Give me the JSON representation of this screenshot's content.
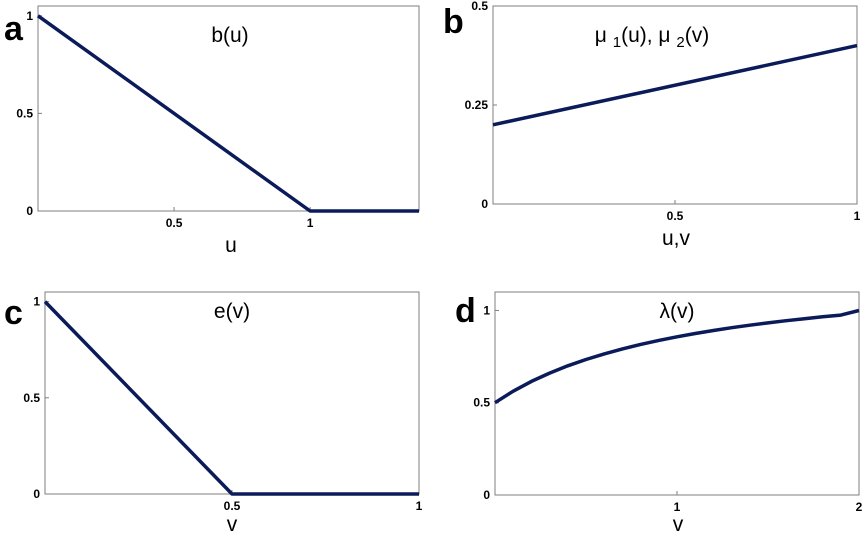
{
  "figure": {
    "line_color": "#0b1b5a",
    "frame_color": "#7f7f7f"
  },
  "chart_data": [
    {
      "panel_letter": "a",
      "type": "line",
      "title": "b(u)",
      "title_parts": [
        {
          "text": "b(u)",
          "sub": false
        }
      ],
      "xlabel": "u",
      "ylabel": "",
      "xlim": [
        0,
        1.4
      ],
      "ylim": [
        0,
        1.05
      ],
      "xticks": [
        {
          "value": 0.5,
          "label": "0.5"
        },
        {
          "value": 1,
          "label": "1"
        }
      ],
      "yticks": [
        {
          "value": 0,
          "label": "0"
        },
        {
          "value": 0.5,
          "label": "0.5"
        },
        {
          "value": 1,
          "label": "1"
        }
      ],
      "grid": false,
      "series": [
        {
          "x": [
            0,
            1,
            1.4
          ],
          "y": [
            1,
            0,
            0
          ]
        }
      ]
    },
    {
      "panel_letter": "b",
      "type": "line",
      "title": "μ 1(u), μ 2(v)",
      "title_parts": [
        {
          "text": "μ ",
          "sub": false
        },
        {
          "text": "1",
          "sub": true
        },
        {
          "text": "(u), μ ",
          "sub": false
        },
        {
          "text": "2",
          "sub": true
        },
        {
          "text": "(v)",
          "sub": false
        }
      ],
      "xlabel": "u,v",
      "ylabel": "",
      "xlim": [
        0,
        1
      ],
      "ylim": [
        0,
        0.5
      ],
      "xticks": [
        {
          "value": 0.5,
          "label": "0.5"
        },
        {
          "value": 1,
          "label": "1"
        }
      ],
      "yticks": [
        {
          "value": 0,
          "label": "0"
        },
        {
          "value": 0.25,
          "label": "0.25"
        },
        {
          "value": 0.5,
          "label": "0.5"
        }
      ],
      "grid": false,
      "series": [
        {
          "x": [
            0,
            1
          ],
          "y": [
            0.2,
            0.4
          ]
        }
      ]
    },
    {
      "panel_letter": "c",
      "type": "line",
      "title": "e(v)",
      "title_parts": [
        {
          "text": "e(v)",
          "sub": false
        }
      ],
      "xlabel": "v",
      "ylabel": "",
      "xlim": [
        0,
        1
      ],
      "ylim": [
        0,
        1.05
      ],
      "xticks": [
        {
          "value": 0.5,
          "label": "0.5"
        },
        {
          "value": 1,
          "label": "1"
        }
      ],
      "yticks": [
        {
          "value": 0,
          "label": "0"
        },
        {
          "value": 0.5,
          "label": "0.5"
        },
        {
          "value": 1,
          "label": "1"
        }
      ],
      "grid": false,
      "series": [
        {
          "x": [
            0,
            0.5,
            1
          ],
          "y": [
            1,
            0,
            0
          ]
        }
      ]
    },
    {
      "panel_letter": "d",
      "type": "line",
      "title": "λ(v)",
      "title_parts": [
        {
          "text": "λ(v)",
          "sub": false
        }
      ],
      "xlabel": "v",
      "ylabel": "",
      "xlim": [
        0,
        2
      ],
      "ylim": [
        0,
        1.1
      ],
      "xticks": [
        {
          "value": 1,
          "label": "1"
        },
        {
          "value": 2,
          "label": "2"
        }
      ],
      "yticks": [
        {
          "value": 0,
          "label": "0"
        },
        {
          "value": 0.5,
          "label": "0.5"
        },
        {
          "value": 1,
          "label": "1"
        }
      ],
      "grid": false,
      "series": [
        {
          "x": [
            0,
            0.1,
            0.2,
            0.3,
            0.4,
            0.5,
            0.6,
            0.7,
            0.8,
            0.9,
            1.0,
            1.1,
            1.2,
            1.3,
            1.4,
            1.5,
            1.6,
            1.7,
            1.8,
            1.9,
            2.0
          ],
          "y": [
            0.5,
            0.5625,
            0.6154,
            0.6606,
            0.7,
            0.7345,
            0.7647,
            0.7917,
            0.8158,
            0.8375,
            0.8571,
            0.875,
            0.8913,
            0.9063,
            0.92,
            0.9327,
            0.9444,
            0.9553,
            0.9655,
            0.975,
            1.0
          ]
        }
      ]
    }
  ]
}
